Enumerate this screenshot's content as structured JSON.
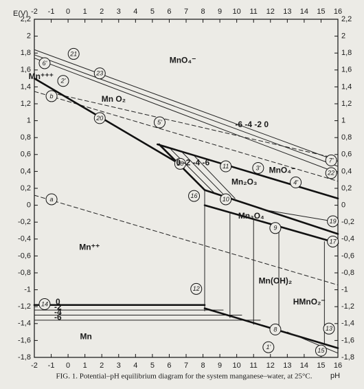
{
  "chart_data": {
    "type": "line",
    "title": "FIG. 1. Potential–pH equilibrium diagram for the system manganese–water, at 25°C.",
    "xlabel": "pH",
    "ylabel": "E(V)",
    "xlim": [
      -2,
      16
    ],
    "ylim": [
      -1.8,
      2.2
    ],
    "xticks": [
      -2,
      -1,
      0,
      1,
      2,
      3,
      4,
      5,
      6,
      7,
      8,
      9,
      10,
      11,
      12,
      13,
      14,
      15,
      16
    ],
    "yticks": [
      {
        "value": 2.2,
        "label": "2,2"
      },
      2,
      {
        "value": 1.8,
        "label": "1,8"
      },
      {
        "value": 1.6,
        "label": "1,6"
      },
      {
        "value": 1.4,
        "label": "1,4"
      },
      {
        "value": 1.2,
        "label": "1,2"
      },
      1,
      {
        "value": 0.8,
        "label": "0,8"
      },
      {
        "value": 0.6,
        "label": "0,6"
      },
      {
        "value": 0.4,
        "label": "0,4"
      },
      {
        "value": 0.2,
        "label": "0,2"
      },
      0,
      {
        "value": -0.2,
        "label": "-0,2"
      },
      {
        "value": -0.4,
        "label": "-0,4"
      },
      {
        "value": -0.6,
        "label": "-0,6"
      },
      {
        "value": -0.8,
        "label": "-0,8"
      },
      -1,
      {
        "value": -1.2,
        "label": "-1,2"
      },
      {
        "value": -1.4,
        "label": "-1,4"
      },
      {
        "value": -1.6,
        "label": "-1,6"
      },
      {
        "value": -1.8,
        "label": "-1,8"
      }
    ],
    "series": [
      {
        "x": [
          -2,
          16
        ],
        "values": [
          0.118,
          -0.944
        ],
        "style": "dashed",
        "color": "#222222"
      },
      {
        "x": [
          -2,
          16
        ],
        "values": [
          1.346,
          0.284
        ],
        "style": "dashed",
        "color": "#222222"
      },
      {
        "x": [
          -2,
          16
        ],
        "values": [
          1.84,
          0.52
        ],
        "style": "thin",
        "color": "#222222"
      },
      {
        "x": [
          -2,
          16
        ],
        "values": [
          1.78,
          0.46
        ],
        "style": "thin",
        "color": "#222222"
      },
      {
        "x": [
          -2,
          16
        ],
        "values": [
          1.74,
          0.38
        ],
        "style": "thin",
        "color": "#222222"
      },
      {
        "x": [
          -1,
          16
        ],
        "values": [
          1.33,
          0.55
        ],
        "style": "dashed",
        "color": "#222222"
      },
      {
        "x": [
          -2,
          6.6
        ],
        "values": [
          1.5,
          0.49
        ],
        "style": "thick",
        "color": "#111111"
      },
      {
        "x": [
          5.3,
          16
        ],
        "values": [
          0.72,
          0.08
        ],
        "style": "thick",
        "color": "#111111"
      },
      {
        "x": [
          5.4,
          8.1
        ],
        "values": [
          0.72,
          0.18
        ],
        "style": "thick",
        "color": "#111111"
      },
      {
        "x": [
          6.1,
          8.7
        ],
        "values": [
          0.66,
          0.14
        ],
        "style": "thin",
        "color": "#222222"
      },
      {
        "x": [
          6.8,
          9.3
        ],
        "values": [
          0.62,
          0.11
        ],
        "style": "thin",
        "color": "#222222"
      },
      {
        "x": [
          7.5,
          9.9
        ],
        "values": [
          0.58,
          0.08
        ],
        "style": "thin",
        "color": "#222222"
      },
      {
        "x": [
          8.1,
          16
        ],
        "values": [
          0.18,
          -0.34
        ],
        "style": "thick",
        "color": "#111111"
      },
      {
        "x": [
          8.1,
          16
        ],
        "values": [
          0.0,
          -0.45
        ],
        "style": "thick",
        "color": "#111111"
      },
      {
        "x": [
          11.5,
          16
        ],
        "values": [
          -0.05,
          -0.2
        ],
        "style": "thin",
        "color": "#222222"
      },
      {
        "x": [
          8.1,
          8.1
        ],
        "values": [
          0.18,
          -1.25
        ],
        "style": "thin",
        "color": "#222222"
      },
      {
        "x": [
          9.6,
          9.6
        ],
        "values": [
          -0.08,
          -1.33
        ],
        "style": "thin",
        "color": "#222222"
      },
      {
        "x": [
          11,
          11
        ],
        "values": [
          -0.16,
          -1.41
        ],
        "style": "thin",
        "color": "#222222"
      },
      {
        "x": [
          12.5,
          12.5
        ],
        "values": [
          -0.25,
          -1.5
        ],
        "style": "thin",
        "color": "#222222"
      },
      {
        "x": [
          15.2,
          15.2
        ],
        "values": [
          -0.43,
          -1.65
        ],
        "style": "thin",
        "color": "#222222"
      },
      {
        "x": [
          -2,
          8.1
        ],
        "values": [
          -1.18,
          -1.18
        ],
        "style": "thick",
        "color": "#111111"
      },
      {
        "x": [
          -2,
          9.2
        ],
        "values": [
          -1.24,
          -1.24
        ],
        "style": "thin",
        "color": "#222222"
      },
      {
        "x": [
          -2,
          10.3
        ],
        "values": [
          -1.3,
          -1.3
        ],
        "style": "thin",
        "color": "#222222"
      },
      {
        "x": [
          -2,
          11.4
        ],
        "values": [
          -1.36,
          -1.36
        ],
        "style": "thin",
        "color": "#222222"
      },
      {
        "x": [
          8.1,
          16
        ],
        "values": [
          -1.22,
          -1.69
        ],
        "style": "thick",
        "color": "#111111"
      },
      {
        "x": [
          13,
          16
        ],
        "values": [
          -1.5,
          -1.75
        ],
        "style": "thin",
        "color": "#222222"
      }
    ],
    "annotations": [
      {
        "text": "21",
        "x": 0.33,
        "y": 1.79,
        "circled": true
      },
      {
        "text": "6'",
        "x": -1.39,
        "y": 1.68,
        "circled": true
      },
      {
        "text": "23",
        "x": 1.88,
        "y": 1.56,
        "circled": true
      },
      {
        "text": "Mn⁺⁺⁺",
        "x": -1.6,
        "y": 1.52,
        "circled": false
      },
      {
        "text": "2'",
        "x": -0.29,
        "y": 1.47,
        "circled": true
      },
      {
        "text": "b",
        "x": -0.98,
        "y": 1.29,
        "circled": true
      },
      {
        "text": "Mn O₂",
        "x": 2.7,
        "y": 1.25,
        "circled": false
      },
      {
        "text": "MnO₄⁻",
        "x": 6.8,
        "y": 1.71,
        "circled": false
      },
      {
        "text": "20",
        "x": 1.88,
        "y": 1.03,
        "circled": true
      },
      {
        "text": "5'",
        "x": 5.43,
        "y": 0.98,
        "circled": true
      },
      {
        "text": "-6 -4 -2 0",
        "x": 10.9,
        "y": 0.95,
        "circled": false
      },
      {
        "text": "18",
        "x": 6.65,
        "y": 0.49,
        "circled": true
      },
      {
        "text": "0  -2  -4  -6",
        "x": 7.4,
        "y": 0.5,
        "circled": false
      },
      {
        "text": "11",
        "x": 9.35,
        "y": 0.46,
        "circled": true
      },
      {
        "text": "3'",
        "x": 11.27,
        "y": 0.44,
        "circled": true
      },
      {
        "text": "MnO₄⁻",
        "x": 12.7,
        "y": 0.41,
        "circled": false
      },
      {
        "text": "4'",
        "x": 13.5,
        "y": 0.27,
        "circled": true
      },
      {
        "text": "7'",
        "x": 15.6,
        "y": 0.53,
        "circled": true
      },
      {
        "text": "22",
        "x": 15.6,
        "y": 0.38,
        "circled": true
      },
      {
        "text": "Mn₂O₃",
        "x": 10.45,
        "y": 0.27,
        "circled": false
      },
      {
        "text": "16",
        "x": 7.47,
        "y": 0.11,
        "circled": true
      },
      {
        "text": "10",
        "x": 9.35,
        "y": 0.07,
        "circled": true
      },
      {
        "text": "Mn₃O₄",
        "x": 10.86,
        "y": -0.13,
        "circled": false
      },
      {
        "text": "9",
        "x": 12.29,
        "y": -0.27,
        "circled": true
      },
      {
        "text": "19",
        "x": 15.7,
        "y": -0.19,
        "circled": true
      },
      {
        "text": "17",
        "x": 15.7,
        "y": -0.43,
        "circled": true
      },
      {
        "text": "a",
        "x": -0.98,
        "y": 0.07,
        "circled": true
      },
      {
        "text": "Mn⁺⁺",
        "x": 1.27,
        "y": -0.5,
        "circled": false
      },
      {
        "text": "12",
        "x": 7.6,
        "y": -0.99,
        "circled": true
      },
      {
        "text": "Mn(OH)₂",
        "x": 12.29,
        "y": -0.9,
        "circled": false
      },
      {
        "text": "HMnO₂⁻",
        "x": 14.3,
        "y": -1.15,
        "circled": false
      },
      {
        "text": "14",
        "x": -1.39,
        "y": -1.17,
        "circled": true
      },
      {
        "text": "0",
        "x": -0.6,
        "y": -1.15,
        "circled": false
      },
      {
        "text": "-2",
        "x": -0.6,
        "y": -1.21,
        "circled": false
      },
      {
        "text": "-4",
        "x": -0.6,
        "y": -1.27,
        "circled": false
      },
      {
        "text": "-6",
        "x": -0.6,
        "y": -1.33,
        "circled": false
      },
      {
        "text": "8",
        "x": 12.29,
        "y": -1.47,
        "circled": true
      },
      {
        "text": "13",
        "x": 15.47,
        "y": -1.46,
        "circled": true
      },
      {
        "text": "Mn",
        "x": 1.06,
        "y": -1.56,
        "circled": false
      },
      {
        "text": "1'",
        "x": 11.88,
        "y": -1.68,
        "circled": true
      },
      {
        "text": "15",
        "x": 15.0,
        "y": -1.72,
        "circled": true
      }
    ]
  }
}
